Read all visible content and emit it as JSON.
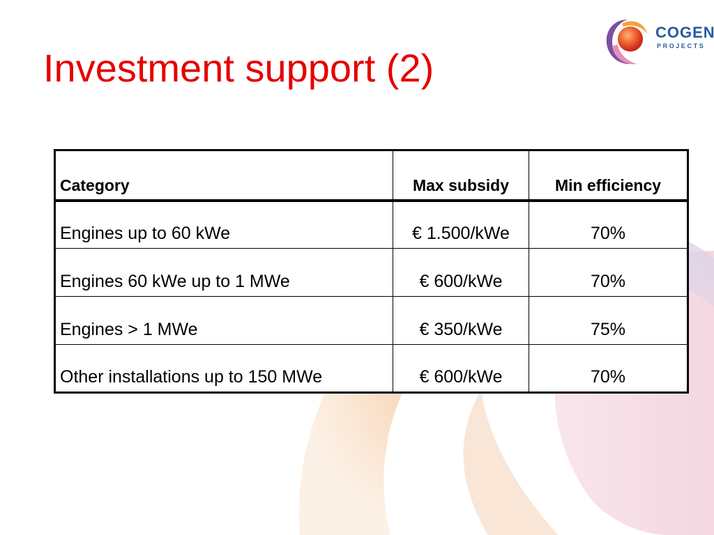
{
  "slide": {
    "title": "Investment support (2)"
  },
  "logo": {
    "name": "COGEN",
    "sub": "PROJECTS",
    "colors": {
      "orange": "#f08a3c",
      "red": "#e03a2a",
      "blue": "#2a5a9c",
      "purple": "#7a4fa0"
    }
  },
  "table": {
    "headers": {
      "category": "Category",
      "max_subsidy": "Max subsidy",
      "min_efficiency": "Min efficiency"
    },
    "rows": [
      {
        "category": "Engines up to 60 kWe",
        "max_subsidy": "€ 1.500/kWe",
        "min_efficiency": "70%"
      },
      {
        "category": "Engines 60 kWe  up to 1 MWe",
        "max_subsidy": "€ 600/kWe",
        "min_efficiency": "70%"
      },
      {
        "category": "Engines > 1 MWe",
        "max_subsidy": "€ 350/kWe",
        "min_efficiency": "75%"
      },
      {
        "category": "Other installations  up to 150 MWe",
        "max_subsidy": "€ 600/kWe",
        "min_efficiency": "70%"
      }
    ]
  },
  "theme": {
    "title_color": "#e60000",
    "swirl_orange": "#f7d7b8",
    "swirl_blue": "#d3dcec",
    "swirl_pink": "#f1d3dd"
  }
}
